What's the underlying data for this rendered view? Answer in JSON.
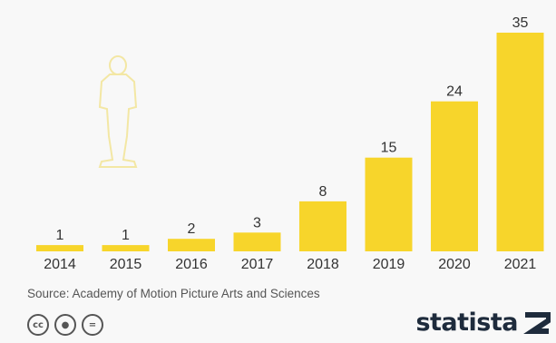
{
  "chart_data": {
    "type": "bar",
    "categories": [
      "2014",
      "2015",
      "2016",
      "2017",
      "2018",
      "2019",
      "2020",
      "2021"
    ],
    "values": [
      1,
      1,
      2,
      3,
      8,
      15,
      24,
      35
    ],
    "title": "",
    "xlabel": "",
    "ylabel": "",
    "ylim": [
      0,
      35
    ],
    "grid": false,
    "data_labels": true
  },
  "source": "Source: Academy of Motion Picture Arts and Sciences",
  "license_icons": [
    "cc-icon",
    "attribution-icon",
    "no-derivatives-icon"
  ],
  "brand": {
    "name": "statista",
    "bar_color": "#f7d52b"
  }
}
